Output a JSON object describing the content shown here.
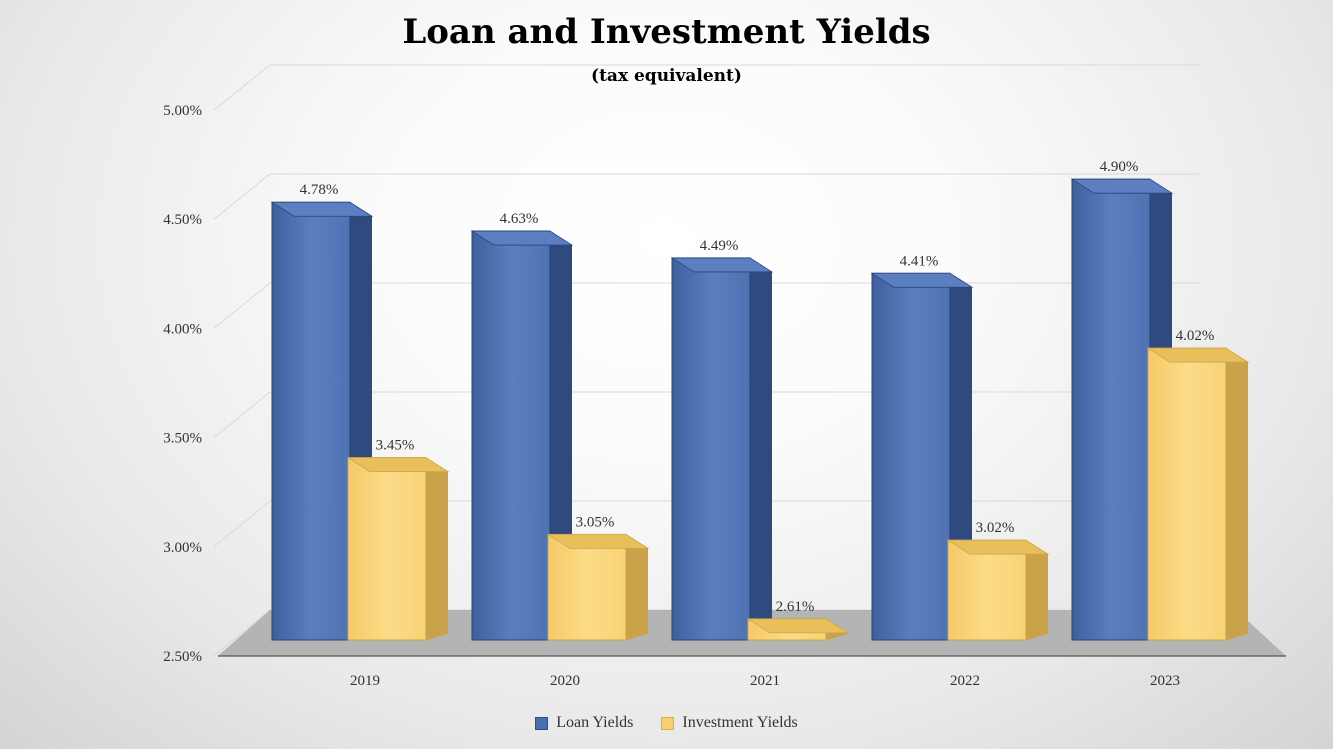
{
  "chart_data": {
    "type": "bar",
    "title": "Loan and Investment Yields",
    "subtitle": "(tax equivalent)",
    "categories": [
      "2019",
      "2020",
      "2021",
      "2022",
      "2023"
    ],
    "series": [
      {
        "name": "Loan Yields",
        "values": [
          4.78,
          4.63,
          4.49,
          4.41,
          4.9
        ],
        "labels": [
          "4.78%",
          "4.63%",
          "4.49%",
          "4.41%",
          "4.90%"
        ],
        "color": "#4a6fb0"
      },
      {
        "name": "Investment Yields",
        "values": [
          3.45,
          3.05,
          2.61,
          3.02,
          4.02
        ],
        "labels": [
          "3.45%",
          "3.05%",
          "2.61%",
          "3.02%",
          "4.02%"
        ],
        "color": "#f8d070"
      }
    ],
    "yticks": [
      "2.50%",
      "3.00%",
      "3.50%",
      "4.00%",
      "4.50%",
      "5.00%"
    ],
    "ylim": [
      2.5,
      5.0
    ],
    "grid": true,
    "legend_position": "bottom",
    "style": "3d-bar"
  }
}
